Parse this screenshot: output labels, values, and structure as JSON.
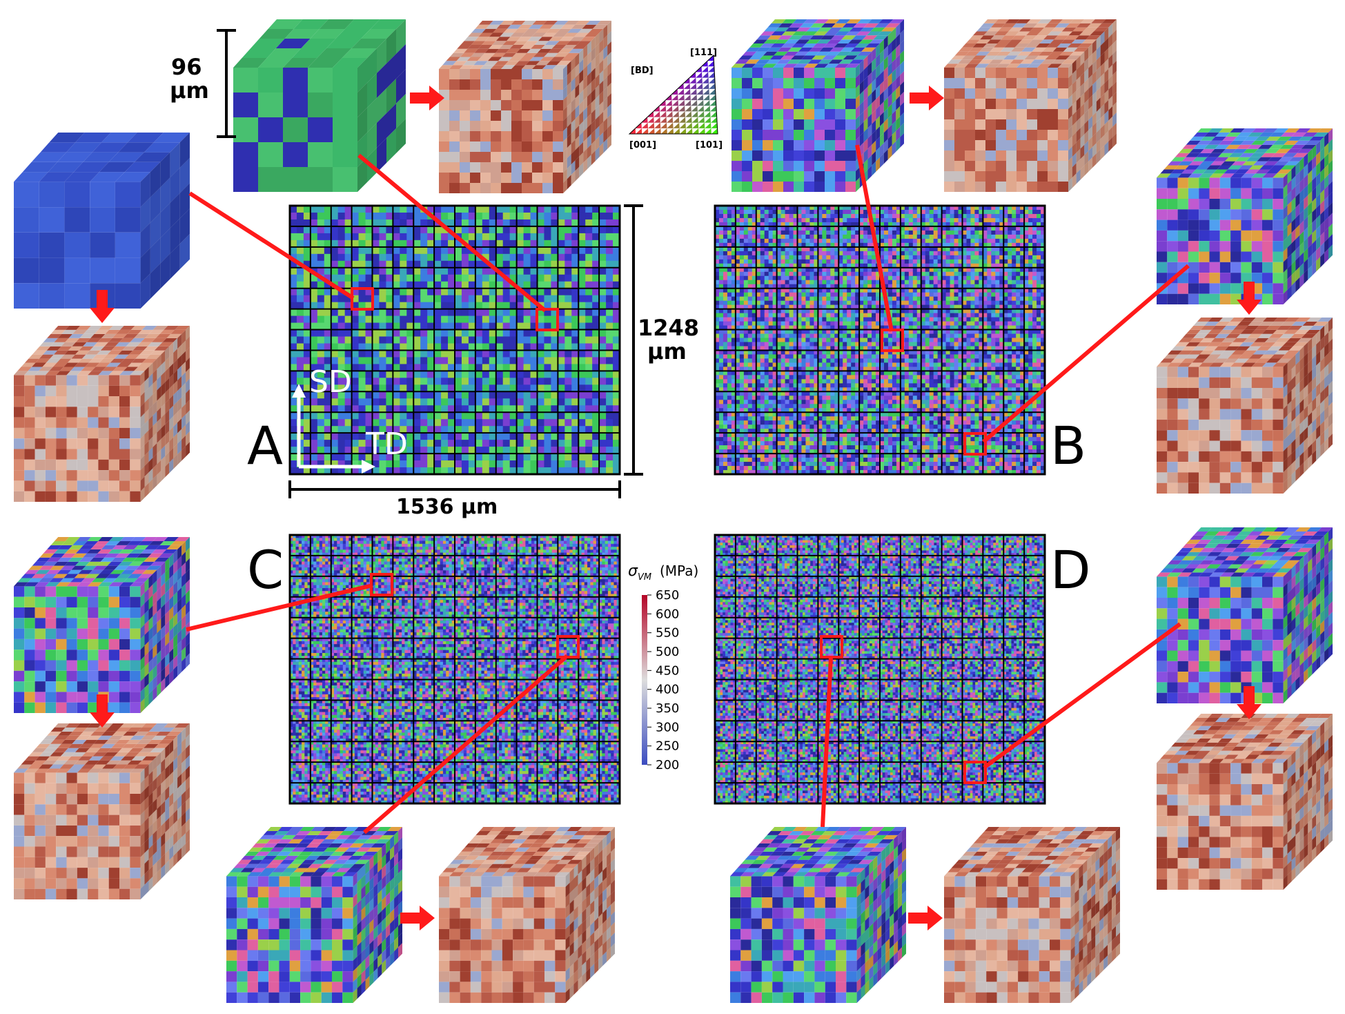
{
  "panels": {
    "A": {
      "letter": "A",
      "grid_cols": 16,
      "grid_rows": 13,
      "texture": "coarse"
    },
    "B": {
      "letter": "B",
      "grid_cols": 16,
      "grid_rows": 13,
      "texture": "medium"
    },
    "C": {
      "letter": "C",
      "grid_cols": 16,
      "grid_rows": 13,
      "texture": "fine"
    },
    "D": {
      "letter": "D",
      "grid_cols": 16,
      "grid_rows": 13,
      "texture": "finest"
    }
  },
  "dimensions": {
    "cube_height_value": "96",
    "cube_height_unit": "μm",
    "map_height_value": "1248",
    "map_height_unit": "μm",
    "map_width_label": "1536 μm"
  },
  "axes": {
    "sd_label": "SD",
    "td_label": "TD"
  },
  "ipf_key": {
    "title": "[BD]",
    "corner_111": "[111]",
    "corner_001": "[001]",
    "corner_101": "[101]"
  },
  "colorbar": {
    "symbol": "σ",
    "subscript": "VM",
    "unit": "(MPa)",
    "ticks": [
      "650",
      "600",
      "550",
      "500",
      "450",
      "400",
      "350",
      "300",
      "250",
      "200"
    ],
    "min": 200,
    "max": 650,
    "colors": {
      "low": "#3b4cc0",
      "mid": "#dddddd",
      "high": "#b40426"
    }
  },
  "colors": {
    "highlight": "#ff1a1a",
    "arrow": "#ff1a1a",
    "grid_line": "#000000",
    "ipf_blue": "#3b3bd6",
    "ipf_green": "#3cc85a",
    "ipf_purple": "#7a3fd0",
    "ipf_cyan": "#3aa8b8"
  },
  "icons": {
    "arrow": "right-arrow-icon",
    "down_arrow": "down-arrow-icon"
  }
}
